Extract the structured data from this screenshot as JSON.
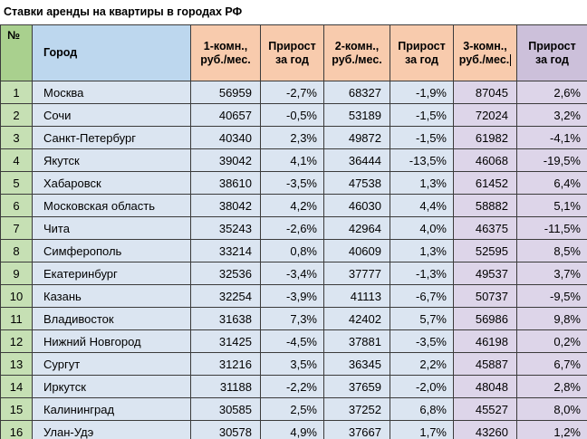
{
  "title": "Ставки аренды на квартиры в городах РФ",
  "table": {
    "columns": [
      "№",
      "Город",
      "1-комн., руб./мес.",
      "Прирост за год",
      "2-комн., руб./мес.",
      "Прирост за год",
      "3-комн., руб./мес.",
      "Прирост за год"
    ],
    "rows": [
      {
        "num": "1",
        "city": "Москва",
        "r1": "56959",
        "g1": "-2,7%",
        "r2": "68327",
        "g2": "-1,9%",
        "r3": "87045",
        "g3": "2,6%"
      },
      {
        "num": "2",
        "city": "Сочи",
        "r1": "40657",
        "g1": "-0,5%",
        "r2": "53189",
        "g2": "-1,5%",
        "r3": "72024",
        "g3": "3,2%"
      },
      {
        "num": "3",
        "city": "Санкт-Петербург",
        "r1": "40340",
        "g1": "2,3%",
        "r2": "49872",
        "g2": "-1,5%",
        "r3": "61982",
        "g3": "-4,1%"
      },
      {
        "num": "4",
        "city": "Якутск",
        "r1": "39042",
        "g1": "4,1%",
        "r2": "36444",
        "g2": "-13,5%",
        "r3": "46068",
        "g3": "-19,5%"
      },
      {
        "num": "5",
        "city": "Хабаровск",
        "r1": "38610",
        "g1": "-3,5%",
        "r2": "47538",
        "g2": "1,3%",
        "r3": "61452",
        "g3": "6,4%"
      },
      {
        "num": "6",
        "city": "Московская область",
        "r1": "38042",
        "g1": "4,2%",
        "r2": "46030",
        "g2": "4,4%",
        "r3": "58882",
        "g3": "5,1%"
      },
      {
        "num": "7",
        "city": "Чита",
        "r1": "35243",
        "g1": "-2,6%",
        "r2": "42964",
        "g2": "4,0%",
        "r3": "46375",
        "g3": "-11,5%"
      },
      {
        "num": "8",
        "city": "Симферополь",
        "r1": "33214",
        "g1": "0,8%",
        "r2": "40609",
        "g2": "1,3%",
        "r3": "52595",
        "g3": "8,5%"
      },
      {
        "num": "9",
        "city": "Екатеринбург",
        "r1": "32536",
        "g1": "-3,4%",
        "r2": "37777",
        "g2": "-1,3%",
        "r3": "49537",
        "g3": "3,7%"
      },
      {
        "num": "10",
        "city": "Казань",
        "r1": "32254",
        "g1": "-3,9%",
        "r2": "41113",
        "g2": "-6,7%",
        "r3": "50737",
        "g3": "-9,5%"
      },
      {
        "num": "11",
        "city": "Владивосток",
        "r1": "31638",
        "g1": "7,3%",
        "r2": "42402",
        "g2": "5,7%",
        "r3": "56986",
        "g3": "9,8%"
      },
      {
        "num": "12",
        "city": "Нижний Новгород",
        "r1": "31425",
        "g1": "-4,5%",
        "r2": "37881",
        "g2": "-3,5%",
        "r3": "46198",
        "g3": "0,2%"
      },
      {
        "num": "13",
        "city": "Сургут",
        "r1": "31216",
        "g1": "3,5%",
        "r2": "36345",
        "g2": "2,2%",
        "r3": "45887",
        "g3": "6,7%"
      },
      {
        "num": "14",
        "city": "Иркутск",
        "r1": "31188",
        "g1": "-2,2%",
        "r2": "37659",
        "g2": "-2,0%",
        "r3": "48048",
        "g3": "2,8%"
      },
      {
        "num": "15",
        "city": "Калининград",
        "r1": "30585",
        "g1": "2,5%",
        "r2": "37252",
        "g2": "6,8%",
        "r3": "45527",
        "g3": "8,0%"
      },
      {
        "num": "16",
        "city": "Улан-Удэ",
        "r1": "30578",
        "g1": "4,9%",
        "r2": "37667",
        "g2": "1,7%",
        "r3": "43260",
        "g3": "1,2%"
      }
    ]
  },
  "colors": {
    "green_header": "#a9d08e",
    "green_cell": "#c6e0b4",
    "blue_header": "#bdd7ee",
    "blue_cell": "#dbe5f1",
    "peach_header": "#f8cbad",
    "purple_header": "#ccc0da",
    "purple_cell": "#ddd5e9",
    "border": "#3b3b3b"
  }
}
